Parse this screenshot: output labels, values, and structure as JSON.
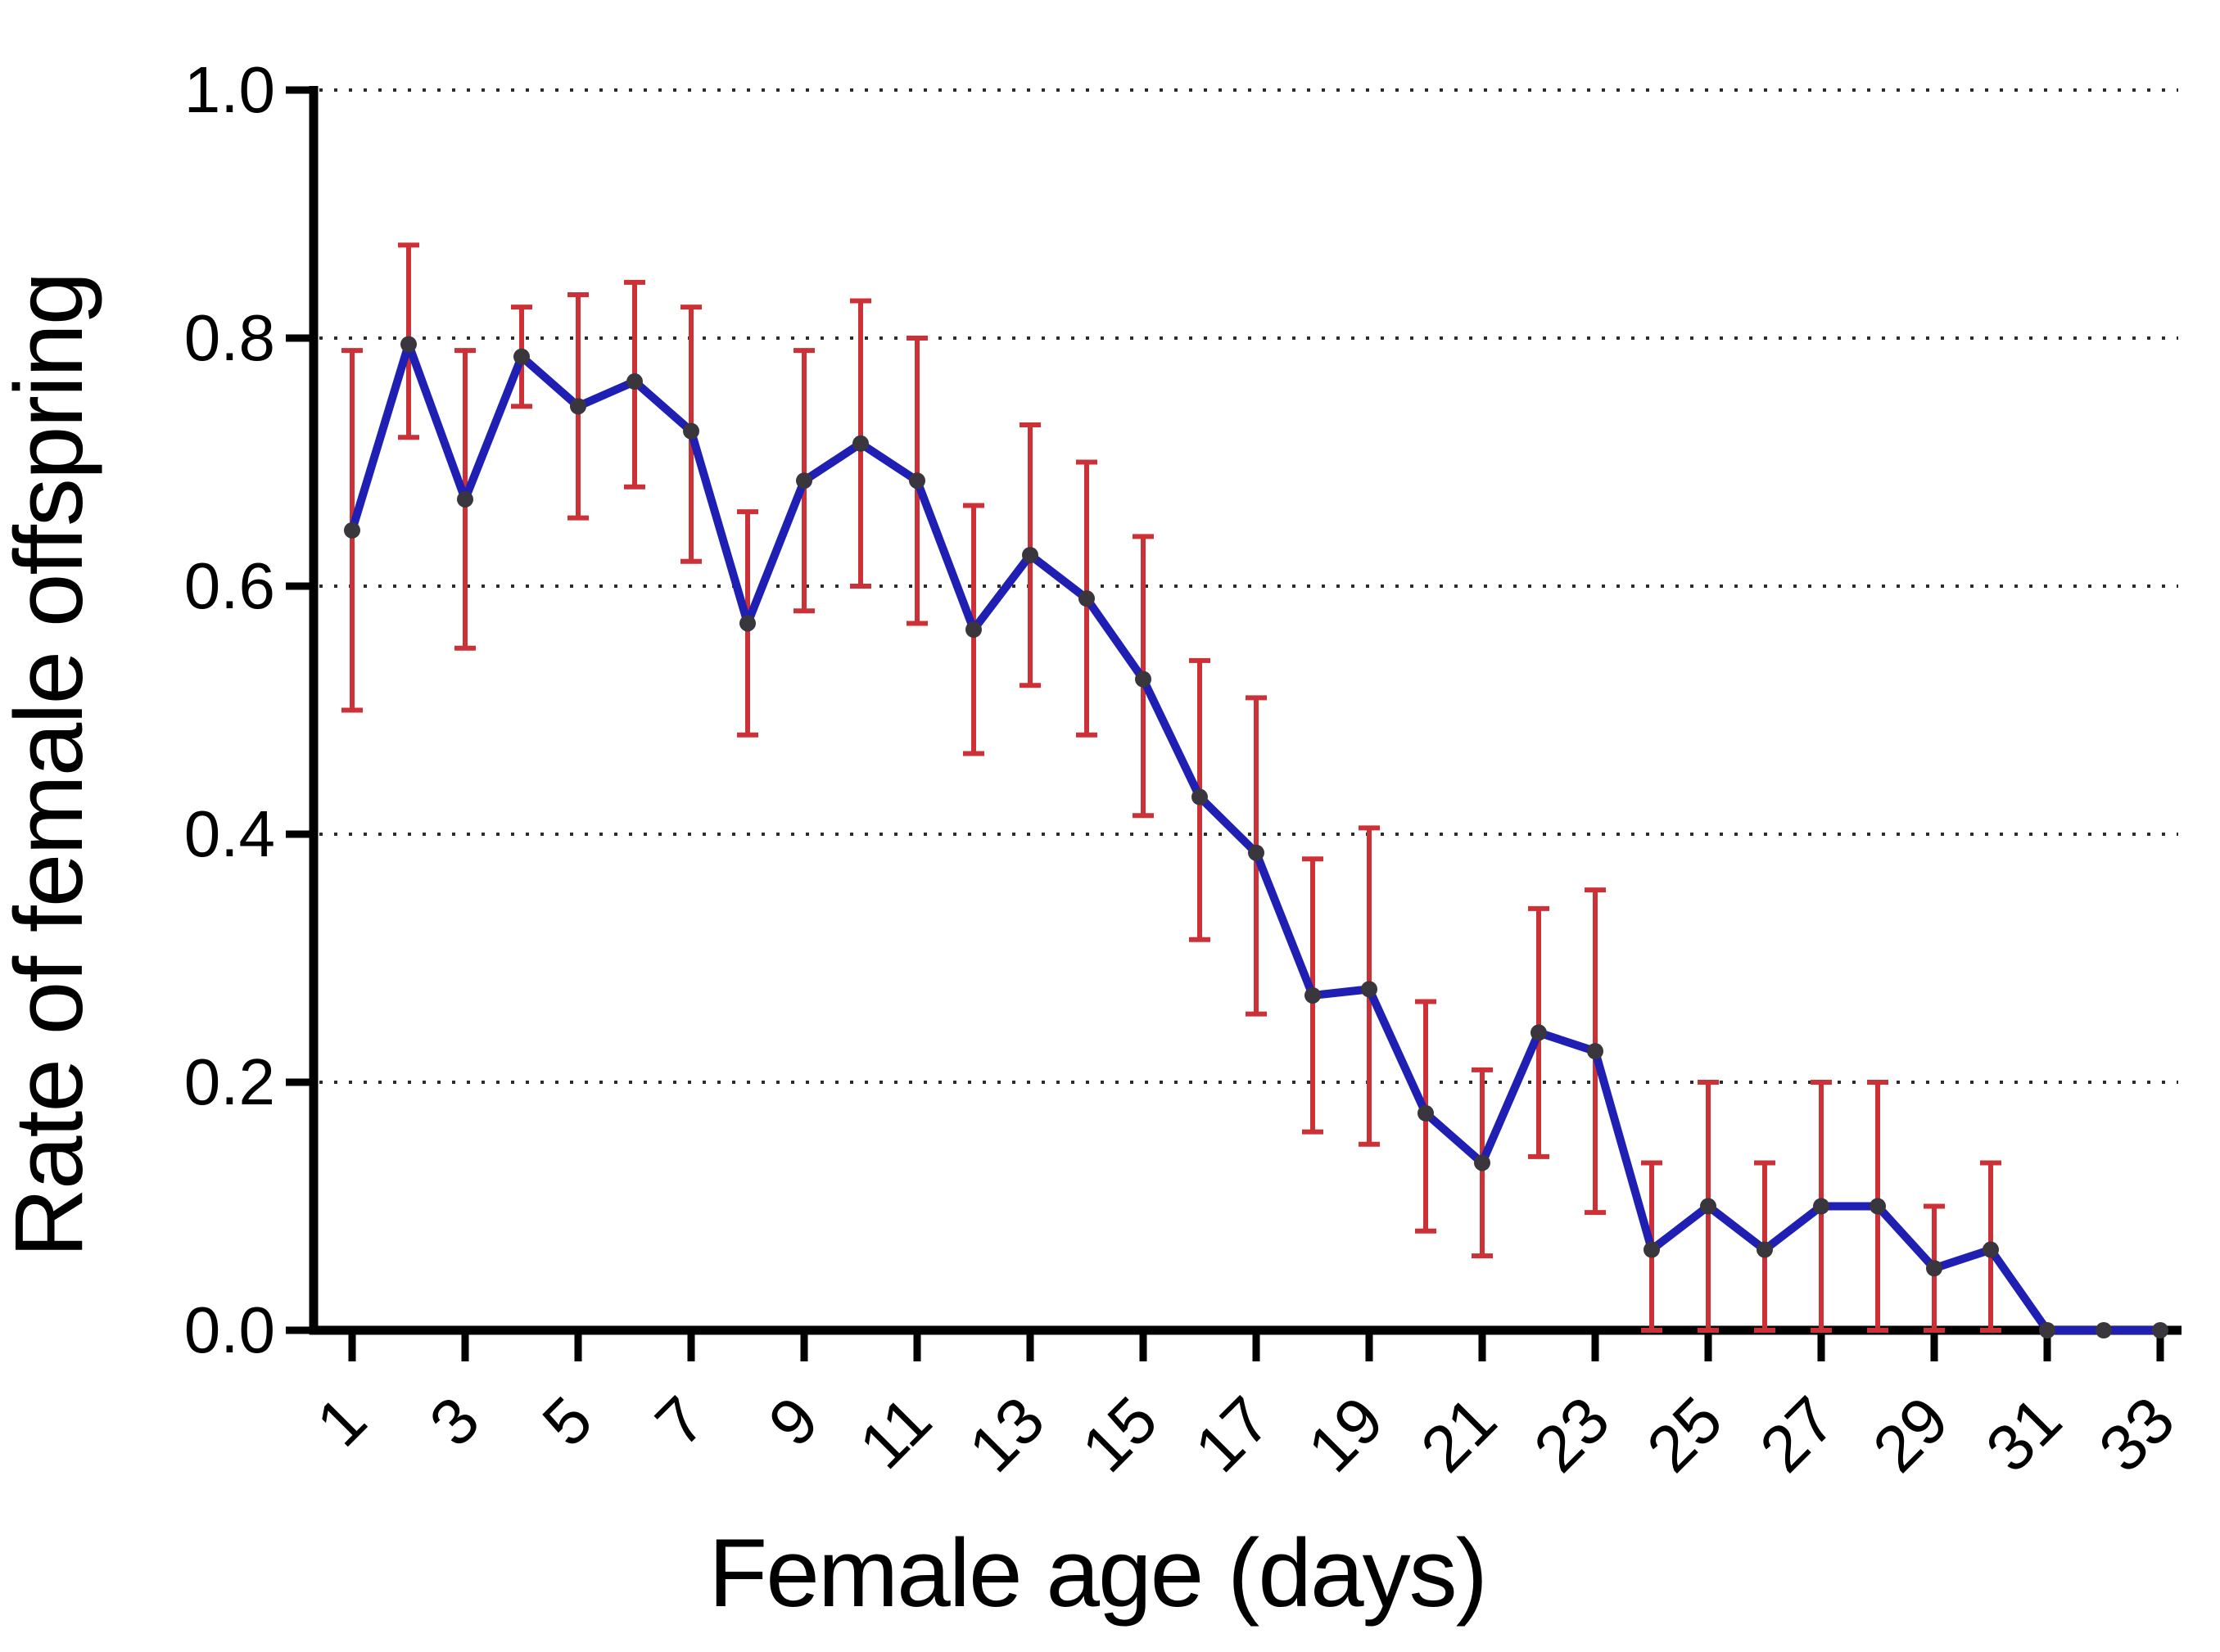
{
  "figure": {
    "background_color": "#ffffff"
  },
  "chart_data": {
    "type": "line",
    "title": "",
    "xlabel": "Female age (days)",
    "ylabel": "Rate of female offspring",
    "x": [
      1,
      2,
      3,
      4,
      5,
      6,
      7,
      8,
      9,
      10,
      11,
      12,
      13,
      14,
      15,
      16,
      17,
      18,
      19,
      20,
      21,
      22,
      23,
      24,
      25,
      26,
      27,
      28,
      29,
      30,
      31,
      32,
      33
    ],
    "values": [
      0.645,
      0.795,
      0.67,
      0.785,
      0.745,
      0.765,
      0.725,
      0.57,
      0.685,
      0.715,
      0.685,
      0.565,
      0.625,
      0.59,
      0.525,
      0.43,
      0.385,
      0.27,
      0.275,
      0.175,
      0.135,
      0.24,
      0.225,
      0.065,
      0.1,
      0.065,
      0.1,
      0.1,
      0.05,
      0.065,
      0.0,
      0.0,
      0.0
    ],
    "error_low": [
      0.5,
      0.72,
      0.55,
      0.745,
      0.655,
      0.68,
      0.62,
      0.48,
      0.58,
      0.6,
      0.57,
      0.465,
      0.52,
      0.48,
      0.415,
      0.315,
      0.255,
      0.16,
      0.15,
      0.08,
      0.06,
      0.14,
      0.095,
      0.0,
      0.0,
      0.0,
      0.0,
      0.0,
      0.0,
      0.0,
      null,
      null,
      null
    ],
    "error_high": [
      0.79,
      0.875,
      0.79,
      0.825,
      0.835,
      0.845,
      0.825,
      0.66,
      0.79,
      0.83,
      0.8,
      0.665,
      0.73,
      0.7,
      0.64,
      0.54,
      0.51,
      0.38,
      0.405,
      0.265,
      0.21,
      0.34,
      0.355,
      0.135,
      0.2,
      0.135,
      0.2,
      0.2,
      0.1,
      0.135,
      null,
      null,
      null
    ],
    "x_ticks": [
      1,
      3,
      5,
      7,
      9,
      11,
      13,
      15,
      17,
      19,
      21,
      23,
      25,
      27,
      29,
      31,
      33
    ],
    "x_tick_labels": [
      "1",
      "3",
      "5",
      "7",
      "9",
      "11",
      "13",
      "15",
      "17",
      "19",
      "21",
      "23",
      "25",
      "27",
      "29",
      "31",
      "33"
    ],
    "y_ticks": [
      0.0,
      0.2,
      0.4,
      0.6,
      0.8,
      1.0
    ],
    "y_tick_labels": [
      "0.0",
      "0.2",
      "0.4",
      "0.6",
      "0.8",
      "1.0"
    ],
    "ylim": [
      0.0,
      1.0
    ],
    "xlim": [
      0,
      34
    ],
    "grid": "horizontal-dotted",
    "gridline_values": [
      0.2,
      0.4,
      0.6,
      0.8,
      1.0
    ],
    "legend": null,
    "marker": "circle",
    "colors": {
      "line": "#1f1fb3",
      "error_bar": "#cc3138",
      "marker": "#3a363d",
      "axis": "#000000",
      "gridline": "#2b2b2b",
      "background": "#ffffff"
    }
  }
}
